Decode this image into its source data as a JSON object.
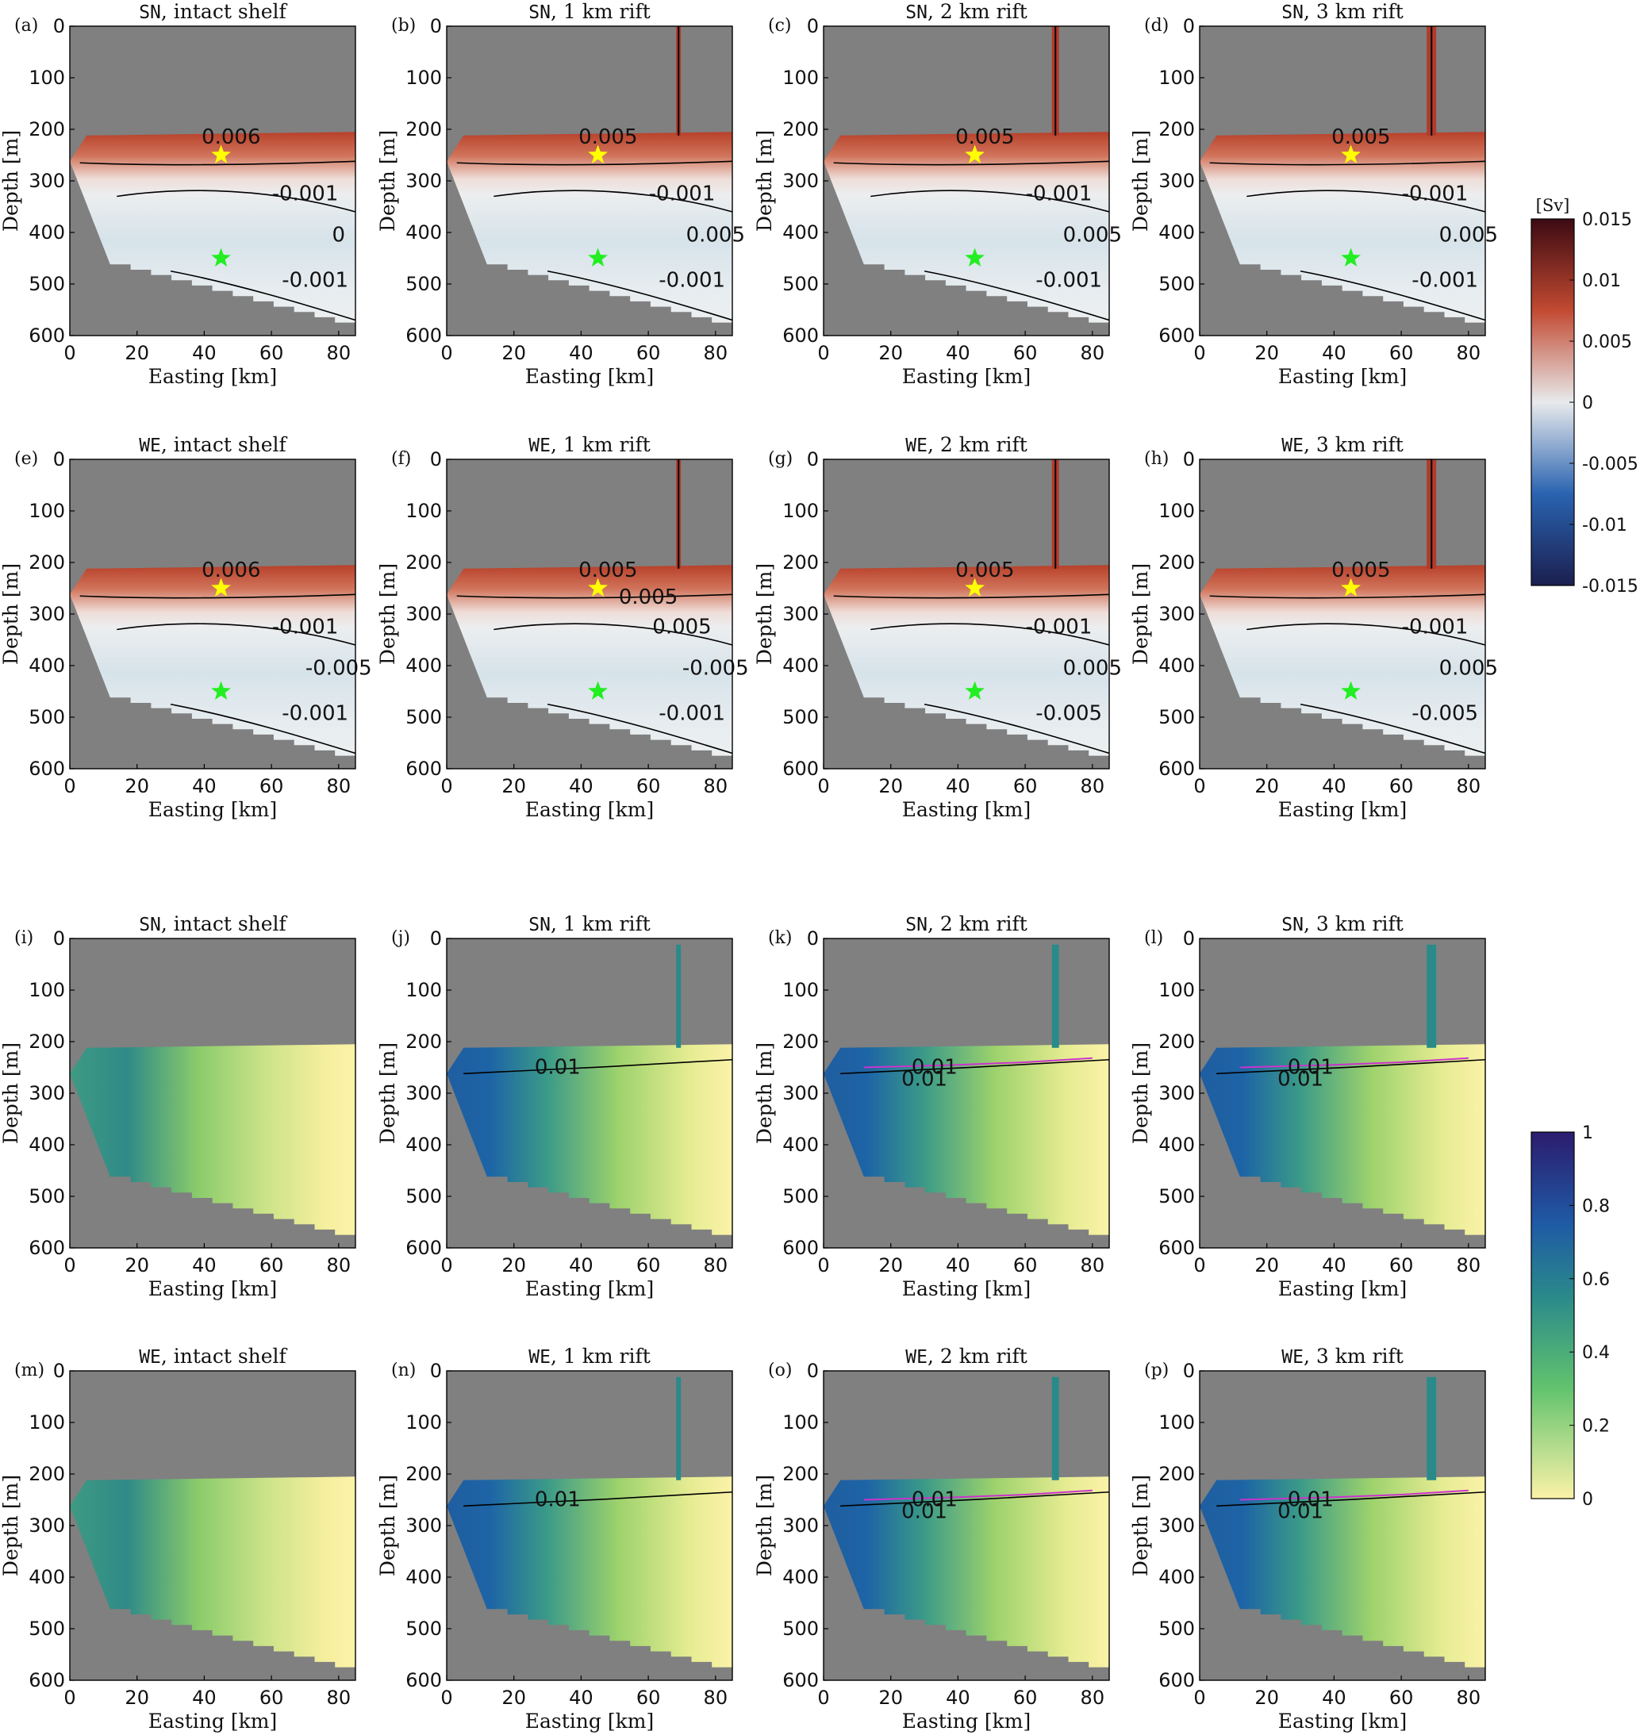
{
  "chart_data": {
    "type": "heatmap",
    "x_axis": {
      "label": "Easting [km]",
      "range": [
        0,
        85
      ],
      "ticks": [
        0,
        20,
        40,
        60,
        80
      ]
    },
    "y_axis": {
      "label": "Depth [m]",
      "range": [
        0,
        600
      ],
      "ticks": [
        0,
        100,
        200,
        300,
        400,
        500,
        600
      ],
      "inverted": true
    },
    "panels": [
      {
        "id": "a",
        "label": "(a)",
        "case": "SN",
        "title": ", intact shelf",
        "field": "velocity",
        "rift": null,
        "contour_labels": [
          "0.006",
          "-0.001",
          "-0.001",
          "0"
        ]
      },
      {
        "id": "b",
        "label": "(b)",
        "case": "SN",
        "title": ", 1 km rift",
        "field": "velocity",
        "rift": 1,
        "contour_labels": [
          "0.005",
          "-0.001",
          "-0.001",
          "0.005"
        ]
      },
      {
        "id": "c",
        "label": "(c)",
        "case": "SN",
        "title": ", 2 km rift",
        "field": "velocity",
        "rift": 2,
        "contour_labels": [
          "0.005",
          "-0.001",
          "-0.001",
          "0.005"
        ]
      },
      {
        "id": "d",
        "label": "(d)",
        "case": "SN",
        "title": ", 3 km rift",
        "field": "velocity",
        "rift": 3,
        "contour_labels": [
          "0.005",
          "-0.001",
          "-0.001",
          "0.005"
        ]
      },
      {
        "id": "e",
        "label": "(e)",
        "case": "WE",
        "title": ", intact shelf",
        "field": "velocity",
        "rift": null,
        "contour_labels": [
          "0.006",
          "-0.001",
          "-0.001",
          "-0.005"
        ]
      },
      {
        "id": "f",
        "label": "(f)",
        "case": "WE",
        "title": ", 1 km rift",
        "field": "velocity",
        "rift": 1,
        "contour_labels": [
          "0.005",
          "0.005",
          "-0.001",
          "-0.005",
          "0.005"
        ]
      },
      {
        "id": "g",
        "label": "(g)",
        "case": "WE",
        "title": ", 2 km rift",
        "field": "velocity",
        "rift": 2,
        "contour_labels": [
          "0.005",
          "-0.001",
          "-0.005",
          "0.005"
        ]
      },
      {
        "id": "h",
        "label": "(h)",
        "case": "WE",
        "title": ", 3 km rift",
        "field": "velocity",
        "rift": 3,
        "contour_labels": [
          "0.005",
          "-0.001",
          "-0.005",
          "0.005"
        ]
      },
      {
        "id": "i",
        "label": "(i)",
        "case": "SN",
        "title": ", intact shelf",
        "field": "fraction",
        "rift": null,
        "contour_labels": []
      },
      {
        "id": "j",
        "label": "(j)",
        "case": "SN",
        "title": ", 1 km rift",
        "field": "fraction",
        "rift": 1,
        "contour_labels": [
          "0.01"
        ]
      },
      {
        "id": "k",
        "label": "(k)",
        "case": "SN",
        "title": ", 2 km rift",
        "field": "fraction",
        "rift": 2,
        "contour_labels": [
          "0.01",
          "0.01"
        ]
      },
      {
        "id": "l",
        "label": "(l)",
        "case": "SN",
        "title": ", 3 km rift",
        "field": "fraction",
        "rift": 3,
        "contour_labels": [
          "0.01",
          "0.01"
        ]
      },
      {
        "id": "m",
        "label": "(m)",
        "case": "WE",
        "title": ", intact shelf",
        "field": "fraction",
        "rift": null,
        "contour_labels": []
      },
      {
        "id": "n",
        "label": "(n)",
        "case": "WE",
        "title": ", 1 km rift",
        "field": "fraction",
        "rift": 1,
        "contour_labels": [
          "0.01"
        ]
      },
      {
        "id": "o",
        "label": "(o)",
        "case": "WE",
        "title": ", 2 km rift",
        "field": "fraction",
        "rift": 2,
        "contour_labels": [
          "0.01",
          "0.01"
        ]
      },
      {
        "id": "p",
        "label": "(p)",
        "case": "WE",
        "title": ", 3 km rift",
        "field": "fraction",
        "rift": 3,
        "contour_labels": [
          "0.01",
          "0.01"
        ]
      }
    ],
    "markers": [
      {
        "color": "#ffff00",
        "easting_km": 45,
        "depth_m": 250
      },
      {
        "color": "#22ee22",
        "easting_km": 45,
        "depth_m": 450
      }
    ],
    "colorbars": [
      {
        "unit": "[Sv]",
        "range": [
          -0.015,
          0.015
        ],
        "ticks": [
          "0.015",
          "0.01",
          "0.005",
          "0",
          "-0.005",
          "-0.01",
          "-0.015"
        ],
        "colormap": "blue-white-red",
        "colors": [
          "#1b1f4f",
          "#2a63b0",
          "#e8eaec",
          "#c24a32",
          "#3c0a12"
        ]
      },
      {
        "unit": "",
        "range": [
          0,
          1
        ],
        "ticks": [
          "1",
          "0.8",
          "0.6",
          "0.4",
          "0.2",
          "0"
        ],
        "colormap": "yellow-green-blue",
        "colors": [
          "#fbf2a8",
          "#62c36e",
          "#2a8a8a",
          "#1f5aa5",
          "#2c1c6e"
        ]
      }
    ]
  }
}
